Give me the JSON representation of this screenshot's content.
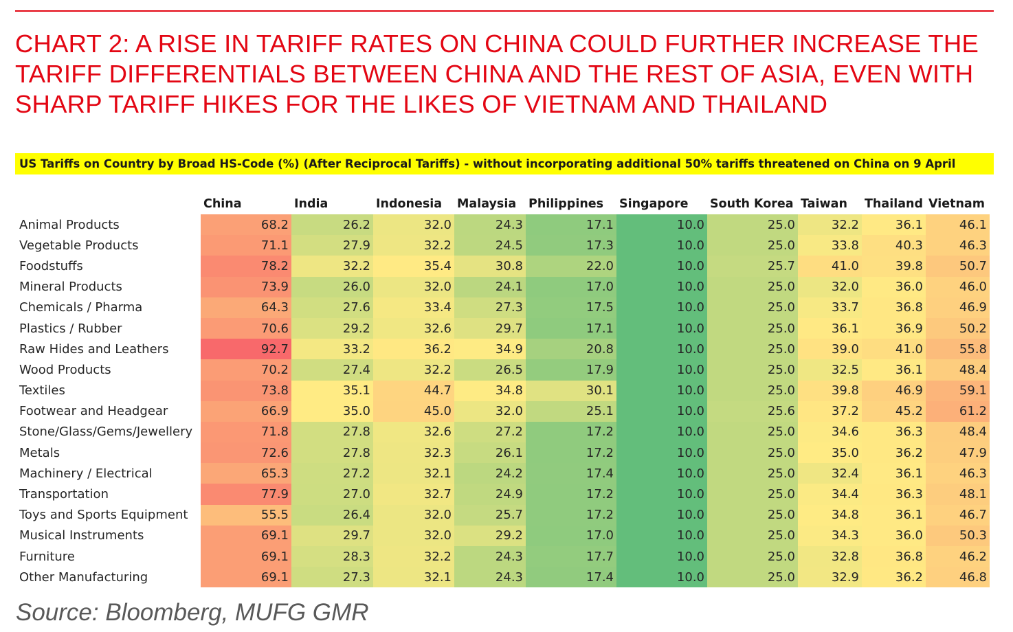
{
  "title": "CHART 2: A RISE IN TARIFF RATES ON CHINA COULD FURTHER INCREASE THE TARIFF DIFFERENTIALS BETWEEN CHINA AND THE REST OF ASIA, EVEN WITH SHARP TARIFF HIKES FOR THE LIKES OF VIETNAM AND THAILAND",
  "banner": "US Tariffs on Country by Broad HS-Code (%) (After Reciprocal Tariffs) - without incorporating additional 50% tariffs threatened on China on 9 April",
  "source": "Source: Bloomberg, MUFG GMR",
  "colors": {
    "title_red": "#e30613",
    "banner_yellow": "#ffff00",
    "scale_low": "#63be7b",
    "scale_mid": "#ffeb84",
    "scale_high": "#f8696b"
  },
  "chart_data": {
    "type": "heatmap",
    "title": "US Tariffs on Country by Broad HS-Code (%) (After Reciprocal Tariffs) - without incorporating additional 50% tariffs threatened on China on 9 April",
    "columns": [
      "China",
      "India",
      "Indonesia",
      "Malaysia",
      "Philippines",
      "Singapore",
      "South Korea",
      "Taiwan",
      "Thailand",
      "Vietnam"
    ],
    "rows": [
      {
        "label": "Animal Products",
        "values": [
          "68.2",
          "26.2",
          "32.0",
          "24.3",
          "17.1",
          "10.0",
          "25.0",
          "32.2",
          "36.1",
          "46.1"
        ]
      },
      {
        "label": "Vegetable Products",
        "values": [
          "71.1",
          "27.9",
          "32.2",
          "24.5",
          "17.3",
          "10.0",
          "25.0",
          "33.8",
          "40.3",
          "46.3"
        ]
      },
      {
        "label": "Foodstuffs",
        "values": [
          "78.2",
          "32.2",
          "35.4",
          "30.8",
          "22.0",
          "10.0",
          "25.7",
          "41.0",
          "39.8",
          "50.7"
        ]
      },
      {
        "label": "Mineral Products",
        "values": [
          "73.9",
          "26.0",
          "32.0",
          "24.1",
          "17.0",
          "10.0",
          "25.0",
          "32.0",
          "36.0",
          "46.0"
        ]
      },
      {
        "label": "Chemicals / Pharma",
        "values": [
          "64.3",
          "27.6",
          "33.4",
          "27.3",
          "17.5",
          "10.0",
          "25.0",
          "33.7",
          "36.8",
          "46.9"
        ]
      },
      {
        "label": "Plastics / Rubber",
        "values": [
          "70.6",
          "29.2",
          "32.6",
          "29.7",
          "17.1",
          "10.0",
          "25.0",
          "36.1",
          "36.9",
          "50.2"
        ]
      },
      {
        "label": "Raw Hides and Leathers",
        "values": [
          "92.7",
          "33.2",
          "36.2",
          "34.9",
          "20.8",
          "10.0",
          "25.0",
          "39.0",
          "41.0",
          "55.8"
        ]
      },
      {
        "label": "Wood Products",
        "values": [
          "70.2",
          "27.4",
          "32.2",
          "26.5",
          "17.9",
          "10.0",
          "25.0",
          "32.5",
          "36.1",
          "48.4"
        ]
      },
      {
        "label": "Textiles",
        "values": [
          "73.8",
          "35.1",
          "44.7",
          "34.8",
          "30.1",
          "10.0",
          "25.0",
          "39.8",
          "46.9",
          "59.1"
        ]
      },
      {
        "label": "Footwear and Headgear",
        "values": [
          "66.9",
          "35.0",
          "45.0",
          "32.0",
          "25.1",
          "10.0",
          "25.6",
          "37.2",
          "45.2",
          "61.2"
        ]
      },
      {
        "label": "Stone/Glass/Gems/Jewellery",
        "values": [
          "71.8",
          "27.8",
          "32.6",
          "27.2",
          "17.2",
          "10.0",
          "25.0",
          "34.6",
          "36.3",
          "48.4"
        ]
      },
      {
        "label": "Metals",
        "values": [
          "72.6",
          "27.8",
          "32.3",
          "26.1",
          "17.2",
          "10.0",
          "25.0",
          "35.0",
          "36.2",
          "47.9"
        ]
      },
      {
        "label": "Machinery / Electrical",
        "values": [
          "65.3",
          "27.2",
          "32.1",
          "24.2",
          "17.4",
          "10.0",
          "25.0",
          "32.4",
          "36.1",
          "46.3"
        ]
      },
      {
        "label": "Transportation",
        "values": [
          "77.9",
          "27.0",
          "32.7",
          "24.9",
          "17.2",
          "10.0",
          "25.0",
          "34.4",
          "36.3",
          "48.1"
        ]
      },
      {
        "label": "Toys and Sports Equipment",
        "values": [
          "55.5",
          "26.4",
          "32.0",
          "25.7",
          "17.2",
          "10.0",
          "25.0",
          "34.8",
          "36.1",
          "46.7"
        ]
      },
      {
        "label": "Musical Instruments",
        "values": [
          "69.1",
          "29.7",
          "32.0",
          "29.2",
          "17.0",
          "10.0",
          "25.0",
          "34.3",
          "36.0",
          "50.3"
        ]
      },
      {
        "label": "Furniture",
        "values": [
          "69.1",
          "28.3",
          "32.2",
          "24.3",
          "17.7",
          "10.0",
          "25.0",
          "32.8",
          "36.8",
          "46.2"
        ]
      },
      {
        "label": "Other Manufacturing",
        "values": [
          "69.1",
          "27.3",
          "32.1",
          "24.3",
          "17.4",
          "10.0",
          "25.0",
          "32.9",
          "36.2",
          "46.8"
        ]
      }
    ],
    "units": "%",
    "color_scale": {
      "min": 10.0,
      "mid": 35.0,
      "max": 92.7
    }
  }
}
